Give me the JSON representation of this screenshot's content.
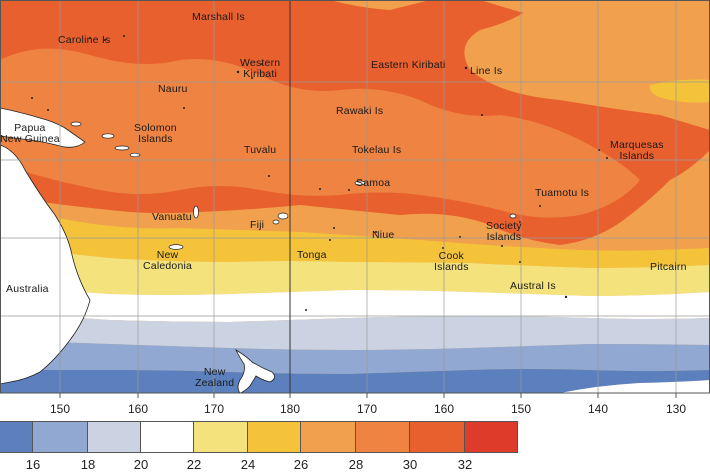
{
  "map": {
    "place_labels": [
      {
        "key": "marshall",
        "text": "Marshall Is"
      },
      {
        "key": "caroline",
        "text": "Caroline Is"
      },
      {
        "key": "western_kiribati",
        "lines": [
          "Western",
          "Kiribati"
        ]
      },
      {
        "key": "eastern_kiribati",
        "text": "Eastern Kiribati"
      },
      {
        "key": "line",
        "text": "Line Is"
      },
      {
        "key": "nauru",
        "text": "Nauru"
      },
      {
        "key": "rawaki",
        "text": "Rawaki Is"
      },
      {
        "key": "png",
        "lines": [
          "Papua",
          "New Guinea"
        ]
      },
      {
        "key": "solomon",
        "lines": [
          "Solomon",
          "Islands"
        ]
      },
      {
        "key": "marquesas",
        "lines": [
          "Marquesas",
          "Islands"
        ]
      },
      {
        "key": "tuvalu",
        "text": "Tuvalu"
      },
      {
        "key": "tokelau",
        "text": "Tokelau Is"
      },
      {
        "key": "samoa",
        "text": "Samoa"
      },
      {
        "key": "tuamotu",
        "text": "Tuamotu Is"
      },
      {
        "key": "vanuatu",
        "text": "Vanuatu"
      },
      {
        "key": "fiji",
        "text": "Fiji"
      },
      {
        "key": "niue",
        "text": "Niue"
      },
      {
        "key": "society",
        "lines": [
          "Society",
          "Islands"
        ]
      },
      {
        "key": "new_caledonia",
        "lines": [
          "New",
          "Caledonia"
        ]
      },
      {
        "key": "tonga",
        "text": "Tonga"
      },
      {
        "key": "cook",
        "lines": [
          "Cook",
          "Islands"
        ]
      },
      {
        "key": "pitcairn",
        "text": "Pitcairn"
      },
      {
        "key": "australia",
        "text": "Australia"
      },
      {
        "key": "austral",
        "text": "Austral Is"
      },
      {
        "key": "new_zealand",
        "lines": [
          "New",
          "Zealand"
        ]
      }
    ],
    "longitude_labels": [
      "150",
      "160",
      "170",
      "180",
      "170",
      "160",
      "150",
      "140",
      "130"
    ]
  },
  "legend": {
    "colors": [
      "#5b80bd",
      "#90a8d2",
      "#cbd3e2",
      "#ffffff",
      "#f4e27d",
      "#f4c339",
      "#f1a14d",
      "#ef8341",
      "#e8602e",
      "#df3b2b"
    ],
    "tick_labels": [
      "16",
      "18",
      "20",
      "22",
      "24",
      "26",
      "28",
      "30",
      "32"
    ]
  },
  "colors": {
    "blue_dark": "#5b80bd",
    "blue_mid": "#90a8d2",
    "blue_light": "#cbd3e2",
    "white": "#ffffff",
    "yellow_light": "#f4e27d",
    "yellow": "#f4c339",
    "orange_light": "#f1a14d",
    "orange": "#ef8341",
    "red_orange": "#e8602e",
    "land": "#ffffff",
    "grid": "#9a9a9a"
  }
}
